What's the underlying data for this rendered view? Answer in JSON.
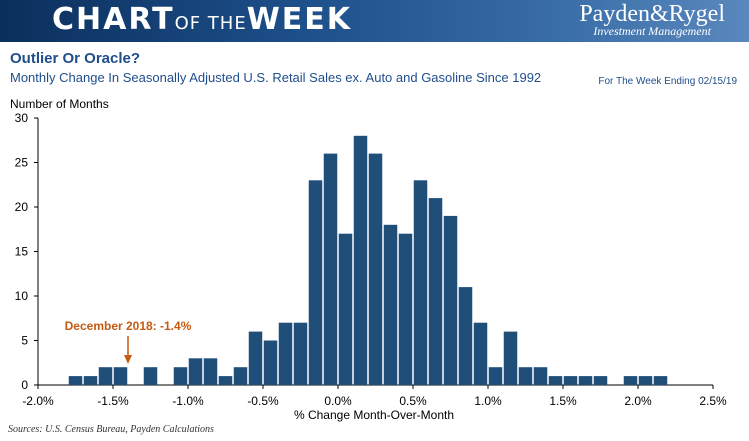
{
  "header": {
    "banner_chart": "CHART",
    "banner_ofthe": "OF THE",
    "banner_week": "WEEK",
    "logo_name": "Payden&Rygel",
    "logo_sub": "Investment Management"
  },
  "week_ending": "For The Week Ending 02/15/19",
  "source": "Sources: U.S. Census Bureau, Payden Calculations",
  "chart_data": {
    "type": "bar",
    "title": "Outlier Or Oracle?",
    "subtitle": "Monthly Change In Seasonally Adjusted U.S. Retail Sales ex. Auto and Gasoline Since 1992",
    "xlabel": "% Change Month-Over-Month",
    "ylabel": "Number of Months",
    "xlim": [
      -2.0,
      2.5
    ],
    "ylim": [
      0,
      30
    ],
    "bin_width": 0.1,
    "xticks": [
      -2.0,
      -1.5,
      -1.0,
      -0.5,
      0.0,
      0.5,
      1.0,
      1.5,
      2.0,
      2.5
    ],
    "xtick_labels": [
      "-2.0%",
      "-1.5%",
      "-1.0%",
      "-0.5%",
      "0.0%",
      "0.5%",
      "1.0%",
      "1.5%",
      "2.0%",
      "2.5%"
    ],
    "yticks": [
      0,
      5,
      10,
      15,
      20,
      25,
      30
    ],
    "bin_centers": [
      -1.75,
      -1.65,
      -1.55,
      -1.45,
      -1.35,
      -1.25,
      -1.15,
      -1.05,
      -0.95,
      -0.85,
      -0.75,
      -0.65,
      -0.55,
      -0.45,
      -0.35,
      -0.25,
      -0.15,
      -0.05,
      0.05,
      0.15,
      0.25,
      0.35,
      0.45,
      0.55,
      0.65,
      0.75,
      0.85,
      0.95,
      1.05,
      1.15,
      1.25,
      1.35,
      1.45,
      1.55,
      1.65,
      1.75,
      1.85,
      1.95,
      2.05,
      2.15,
      2.25,
      2.35
    ],
    "values": [
      1,
      1,
      2,
      2,
      0,
      2,
      0,
      2,
      3,
      3,
      1,
      2,
      6,
      5,
      7,
      7,
      23,
      26,
      17,
      28,
      26,
      18,
      17,
      23,
      21,
      19,
      11,
      7,
      2,
      6,
      2,
      2,
      1,
      1,
      1,
      1,
      0,
      1,
      1,
      1,
      0,
      0
    ],
    "bar_color": "#1f4e79",
    "annotation": {
      "text": "December 2018: -1.4%",
      "x": -1.4,
      "color": "#c55a11"
    }
  }
}
